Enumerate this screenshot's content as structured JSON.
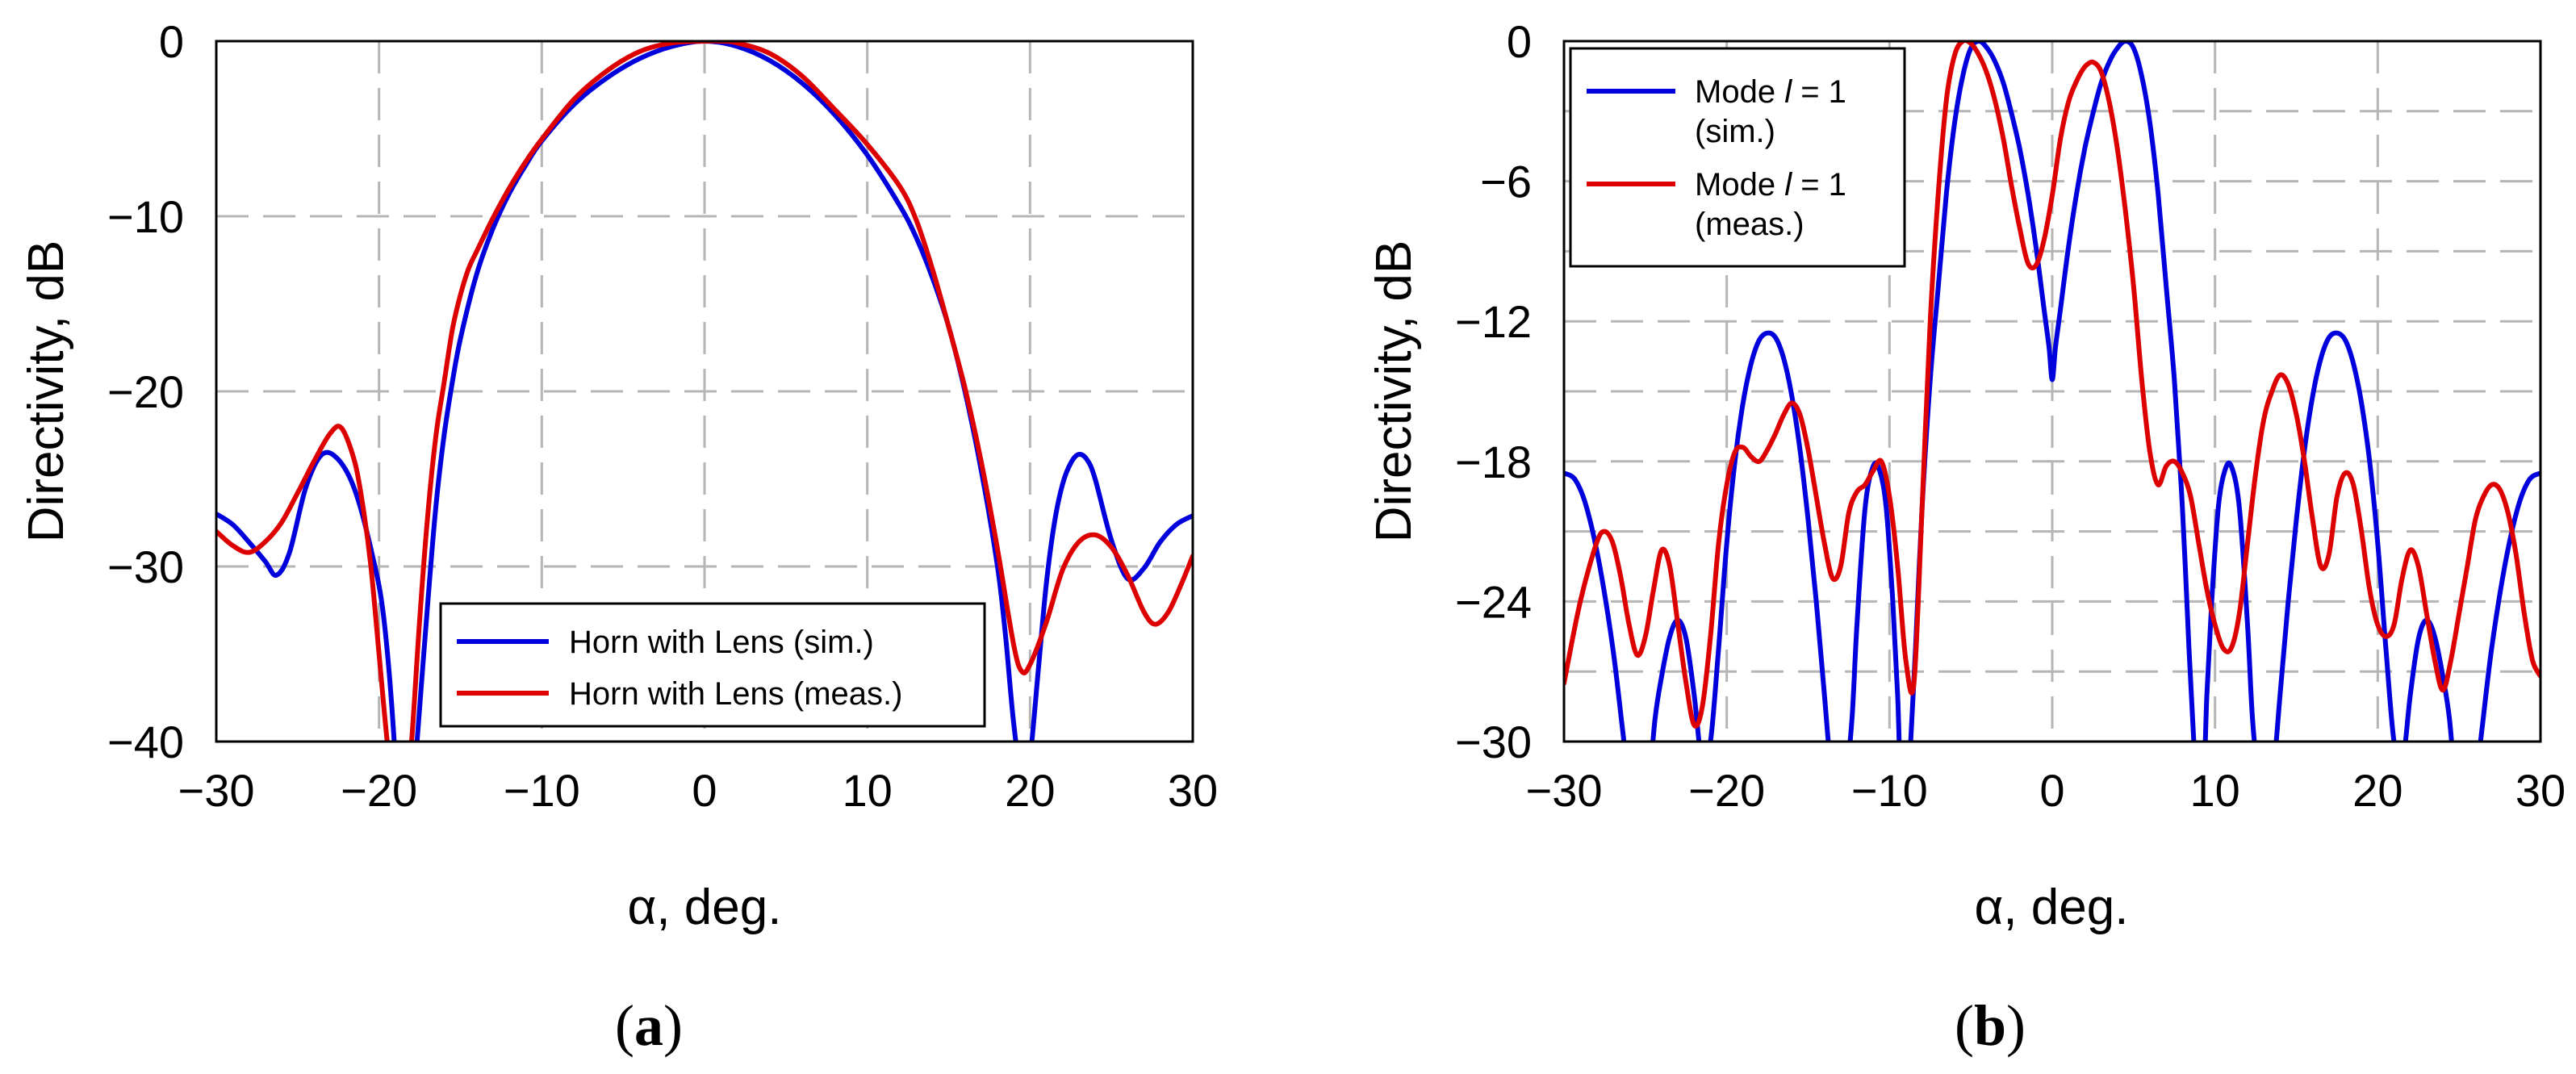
{
  "chart_data": [
    {
      "id": "a",
      "type": "line",
      "caption": "(a)",
      "caption_letter": "a",
      "xlabel": "α, deg.",
      "ylabel": "Directivity, dB",
      "xlim": [
        -30,
        30
      ],
      "ylim": [
        -40,
        0
      ],
      "xticks": [
        -30,
        -20,
        -10,
        0,
        10,
        20,
        30
      ],
      "yticks": [
        0,
        -10,
        -20,
        -30,
        -40
      ],
      "xtick_labels": [
        "−30",
        "−20",
        "−10",
        "0",
        "10",
        "20",
        "30"
      ],
      "ytick_labels": [
        "0",
        "−10",
        "−20",
        "−30",
        "−40"
      ],
      "grid": true,
      "legend_position": "bottom-right",
      "series": [
        {
          "name": "Horn with Lens (sim.)",
          "color": "#0000dd",
          "x": [
            -30,
            -29,
            -28,
            -27,
            -26.3,
            -25.5,
            -24.5,
            -23.5,
            -22.5,
            -21.5,
            -20.5,
            -19.7,
            -19,
            -18.6,
            -18,
            -17.5,
            -17,
            -16.5,
            -16,
            -15.5,
            -15,
            -14,
            -13,
            -12,
            -11,
            -10,
            -8,
            -6,
            -4,
            -2,
            0,
            2,
            4,
            6,
            8,
            10,
            12,
            13,
            14,
            15,
            16,
            17,
            18,
            18.5,
            19,
            19.6,
            20,
            20.5,
            21,
            21.5,
            22,
            22.5,
            23,
            23.5,
            24,
            25,
            26,
            27,
            28,
            29,
            30
          ],
          "y": [
            -27,
            -27.6,
            -28.6,
            -29.7,
            -30.5,
            -29.2,
            -25.5,
            -23.6,
            -23.9,
            -25.6,
            -29,
            -33,
            -41,
            -50,
            -44,
            -38,
            -32,
            -26.5,
            -22.5,
            -19.5,
            -17,
            -13.3,
            -10.7,
            -8.7,
            -7.1,
            -5.7,
            -3.6,
            -2.1,
            -1.0,
            -0.3,
            0,
            -0.3,
            -1.1,
            -2.4,
            -4.2,
            -6.5,
            -9.4,
            -11.2,
            -13.5,
            -16.3,
            -20,
            -24.5,
            -30,
            -34,
            -39,
            -43,
            -41,
            -36,
            -31,
            -27.5,
            -25.3,
            -24.1,
            -23.6,
            -23.9,
            -25,
            -28.5,
            -30.7,
            -30.1,
            -28.6,
            -27.6,
            -27.1
          ]
        },
        {
          "name": "Horn with Lens (meas.)",
          "color": "#dd0000",
          "x": [
            -30,
            -29,
            -28,
            -27,
            -26,
            -25,
            -24,
            -23,
            -22.3,
            -21.5,
            -21,
            -20.5,
            -20,
            -19.5,
            -19,
            -18.5,
            -18,
            -17.5,
            -17,
            -16.5,
            -16,
            -15.5,
            -15,
            -14.5,
            -14,
            -13,
            -12,
            -11,
            -10,
            -8,
            -6,
            -4,
            -2,
            0,
            1,
            2,
            4,
            6,
            8,
            10,
            12,
            13,
            14,
            15,
            16,
            17,
            18,
            19,
            19.5,
            20,
            21,
            22,
            23,
            24,
            25,
            26,
            27,
            27.7,
            28.5,
            29.3,
            30
          ],
          "y": [
            -28,
            -28.8,
            -29.2,
            -28.6,
            -27.5,
            -25.8,
            -24,
            -22.4,
            -22.1,
            -24,
            -26.5,
            -30,
            -35,
            -40,
            -44,
            -45,
            -40,
            -33,
            -27,
            -22.5,
            -19.5,
            -16.5,
            -14.5,
            -13,
            -12,
            -10.1,
            -8.4,
            -6.9,
            -5.6,
            -3.3,
            -1.7,
            -0.6,
            -0.1,
            0,
            0,
            -0.1,
            -0.7,
            -2,
            -3.9,
            -5.9,
            -8.3,
            -10.2,
            -13,
            -16.3,
            -19.8,
            -24,
            -29,
            -34.5,
            -36,
            -35.6,
            -33.2,
            -30.2,
            -28.6,
            -28.2,
            -28.9,
            -30.5,
            -32.6,
            -33.3,
            -32.6,
            -31,
            -29.4
          ]
        }
      ]
    },
    {
      "id": "b",
      "type": "line",
      "caption": "(b)",
      "caption_letter": "b",
      "xlabel": "α, deg.",
      "ylabel": "Directivity, dB",
      "xlim": [
        -30,
        30
      ],
      "ylim": [
        -30,
        0
      ],
      "xticks": [
        -30,
        -20,
        -10,
        0,
        10,
        20,
        30
      ],
      "yticks": [
        0,
        -6,
        -12,
        -18,
        -24,
        -30
      ],
      "xtick_labels": [
        "−30",
        "−20",
        "−10",
        "0",
        "10",
        "20",
        "30"
      ],
      "ytick_labels": [
        "0",
        "−6",
        "−12",
        "−18",
        "−24",
        "−30"
      ],
      "grid": true,
      "legend_position": "top-left",
      "series": [
        {
          "name": "Mode l = 1 (sim.)",
          "legend_lines": [
            "Mode",
            "l",
            "= 1",
            "(sim.)"
          ],
          "color": "#0000dd",
          "x": [
            -30,
            -29.3,
            -28.6,
            -27.8,
            -27,
            -26.4,
            -25.8,
            -25.3,
            -24.8,
            -24.4,
            -24,
            -23.5,
            -23,
            -22.5,
            -22,
            -21.5,
            -21,
            -20.5,
            -20,
            -19.5,
            -19,
            -18.5,
            -18,
            -17.5,
            -17,
            -16.5,
            -16,
            -15.5,
            -15,
            -14.5,
            -14,
            -13.5,
            -13,
            -12.7,
            -12.3,
            -12,
            -11.5,
            -11,
            -10.6,
            -10.2,
            -9.8,
            -9.5,
            -9.3,
            -9,
            -8.7,
            -8.4,
            -8,
            -7.5,
            -7,
            -6.5,
            -6,
            -5.5,
            -5,
            -4.5,
            -4,
            -3.5,
            -3,
            -2.5,
            -2,
            -1.5,
            -1,
            -0.5,
            -0.2,
            0,
            0.2,
            0.5,
            1,
            1.5,
            2,
            2.5,
            3,
            3.5,
            4,
            4.5,
            5,
            5.5,
            6,
            6.5,
            7,
            7.5,
            8,
            8.4,
            8.7,
            9,
            9.3,
            9.5,
            9.8,
            10.2,
            10.6,
            11,
            11.5,
            12,
            12.3,
            12.7,
            13,
            13.5,
            14,
            14.5,
            15,
            15.5,
            16,
            16.5,
            17,
            17.5,
            18,
            18.5,
            19,
            19.5,
            20,
            20.5,
            21,
            21.5,
            22,
            22.5,
            23,
            23.5,
            24,
            24.4,
            24.8,
            25.3,
            25.8,
            26.4,
            27,
            27.8,
            28.6,
            29.3,
            30
          ],
          "y": [
            -18.5,
            -18.8,
            -20,
            -22.5,
            -26,
            -29.5,
            -33,
            -34,
            -32,
            -29,
            -27.2,
            -25.5,
            -24.8,
            -25.6,
            -28,
            -31,
            -30,
            -26,
            -21.5,
            -18,
            -15.5,
            -13.8,
            -12.8,
            -12.5,
            -12.7,
            -13.6,
            -15.2,
            -17.5,
            -20.5,
            -24,
            -28,
            -32,
            -34,
            -32,
            -29,
            -25,
            -20,
            -18.2,
            -18.4,
            -20,
            -24,
            -28,
            -32,
            -33,
            -30,
            -26,
            -20,
            -14.5,
            -10.5,
            -6.5,
            -3.5,
            -1.5,
            -0.3,
            0,
            -0.3,
            -0.9,
            -1.8,
            -3.1,
            -4.6,
            -6.5,
            -8.8,
            -11.5,
            -13.1,
            -14.5,
            -13.1,
            -11.5,
            -8.8,
            -6.5,
            -4.6,
            -3.1,
            -1.8,
            -0.9,
            -0.3,
            0,
            -0.3,
            -1.5,
            -3.5,
            -6.5,
            -10.5,
            -14.5,
            -20,
            -26,
            -30,
            -33,
            -32,
            -28,
            -24,
            -20,
            -18.4,
            -18.2,
            -20,
            -25,
            -29,
            -32,
            -34,
            -32,
            -28,
            -24,
            -20.5,
            -17.5,
            -15.2,
            -13.6,
            -12.7,
            -12.5,
            -12.8,
            -13.8,
            -15.5,
            -18,
            -21.5,
            -26,
            -30,
            -31,
            -28,
            -25.6,
            -24.8,
            -25.5,
            -27.2,
            -29,
            -32,
            -34,
            -33,
            -29.5,
            -26,
            -22.5,
            -20,
            -18.8,
            -18.5
          ]
        },
        {
          "name": "Mode l = 1 (meas.)",
          "legend_lines": [
            "Mode",
            "l",
            "= 1",
            "(meas.)"
          ],
          "color": "#dd0000",
          "x": [
            -30,
            -29,
            -28,
            -27.5,
            -27,
            -26.5,
            -26,
            -25.5,
            -25,
            -24.5,
            -24,
            -23.5,
            -23,
            -22.5,
            -22,
            -21.5,
            -21,
            -20.5,
            -20,
            -19.5,
            -19,
            -18.5,
            -18,
            -17.5,
            -17,
            -16.5,
            -16,
            -15.5,
            -15,
            -14.5,
            -14,
            -13.5,
            -13,
            -12.5,
            -12,
            -11.5,
            -11,
            -10.5,
            -10,
            -9.5,
            -9,
            -8.5,
            -8,
            -7.5,
            -7,
            -6.5,
            -6,
            -5.5,
            -5,
            -4.5,
            -4,
            -3.5,
            -3,
            -2.5,
            -2,
            -1.5,
            -1,
            -0.5,
            0,
            0.5,
            1,
            1.5,
            2,
            2.5,
            3,
            3.5,
            4,
            4.5,
            5,
            5.5,
            6,
            6.5,
            7,
            7.5,
            8,
            8.5,
            9,
            9.5,
            10,
            10.5,
            11,
            11.5,
            12,
            12.5,
            13,
            13.5,
            14,
            14.5,
            15,
            15.5,
            16,
            16.5,
            17,
            17.5,
            18,
            18.5,
            19,
            19.5,
            20,
            20.5,
            21,
            21.5,
            22,
            22.5,
            23,
            23.5,
            24,
            24.5,
            25,
            25.5,
            26,
            26.5,
            27,
            27.5,
            28,
            28.5,
            29,
            29.5,
            30
          ],
          "y": [
            -27.5,
            -24,
            -21.5,
            -21,
            -21.5,
            -23,
            -25,
            -26.3,
            -25.5,
            -23.5,
            -21.8,
            -22.5,
            -25,
            -27.5,
            -29.3,
            -28.5,
            -25.5,
            -21.5,
            -19,
            -17.6,
            -17.4,
            -17.8,
            -18,
            -17.5,
            -16.8,
            -16,
            -15.5,
            -16,
            -17.5,
            -19.5,
            -21.5,
            -23,
            -22.5,
            -20.2,
            -19.3,
            -19,
            -18.4,
            -18,
            -19.5,
            -22.5,
            -26.5,
            -27.5,
            -20,
            -12,
            -6.5,
            -2.5,
            -0.6,
            0,
            -0.1,
            -0.6,
            -1.4,
            -2.6,
            -4.2,
            -6.2,
            -8,
            -9.5,
            -9.6,
            -8.5,
            -6.6,
            -4.2,
            -2.6,
            -1.7,
            -1.1,
            -0.9,
            -1.3,
            -2.6,
            -4.6,
            -7.3,
            -10.5,
            -14.5,
            -17.6,
            -19,
            -18.2,
            -18,
            -18.5,
            -19.5,
            -21.5,
            -23.5,
            -25,
            -26,
            -26,
            -24.5,
            -21.5,
            -18.5,
            -16.2,
            -15,
            -14.3,
            -14.7,
            -16,
            -18,
            -20.5,
            -22.5,
            -22,
            -19.5,
            -18.5,
            -19,
            -21,
            -23.5,
            -25,
            -25.5,
            -25,
            -23,
            -21.8,
            -22.5,
            -24.5,
            -26.5,
            -27.8,
            -26.5,
            -24.5,
            -22.5,
            -20.5,
            -19.5,
            -19,
            -19.2,
            -20.2,
            -22,
            -24.5,
            -26.5,
            -27.2
          ]
        }
      ]
    }
  ]
}
